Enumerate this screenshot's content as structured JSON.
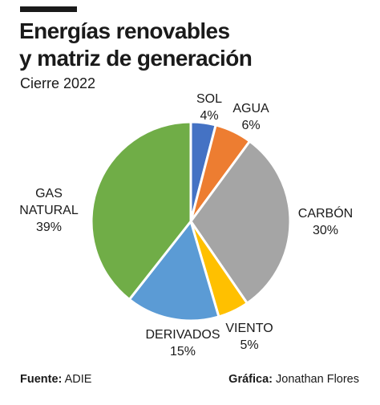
{
  "header": {
    "title_line1": "Energías renovables",
    "title_line2": "y matriz de generación",
    "subtitle": "Cierre 2022"
  },
  "chart_data": {
    "type": "pie",
    "slices": [
      {
        "label_lines": [
          "SOL"
        ],
        "value": 4,
        "value_label": "4%",
        "color": "#4472c4"
      },
      {
        "label_lines": [
          "AGUA"
        ],
        "value": 6,
        "value_label": "6%",
        "color": "#ed7d31"
      },
      {
        "label_lines": [
          "CARBÓN"
        ],
        "value": 30,
        "value_label": "30%",
        "color": "#a5a5a5"
      },
      {
        "label_lines": [
          "VIENTO"
        ],
        "value": 5,
        "value_label": "5%",
        "color": "#ffc000"
      },
      {
        "label_lines": [
          "DERIVADOS"
        ],
        "value": 15,
        "value_label": "15%",
        "color": "#5b9bd5"
      },
      {
        "label_lines": [
          "GAS",
          "NATURAL"
        ],
        "value": 39,
        "value_label": "39%",
        "color": "#70ad47"
      }
    ]
  },
  "footer": {
    "source_label": "Fuente:",
    "source_value": "ADIE",
    "credit_label": "Gráfica:",
    "credit_value": "Jonathan Flores"
  }
}
